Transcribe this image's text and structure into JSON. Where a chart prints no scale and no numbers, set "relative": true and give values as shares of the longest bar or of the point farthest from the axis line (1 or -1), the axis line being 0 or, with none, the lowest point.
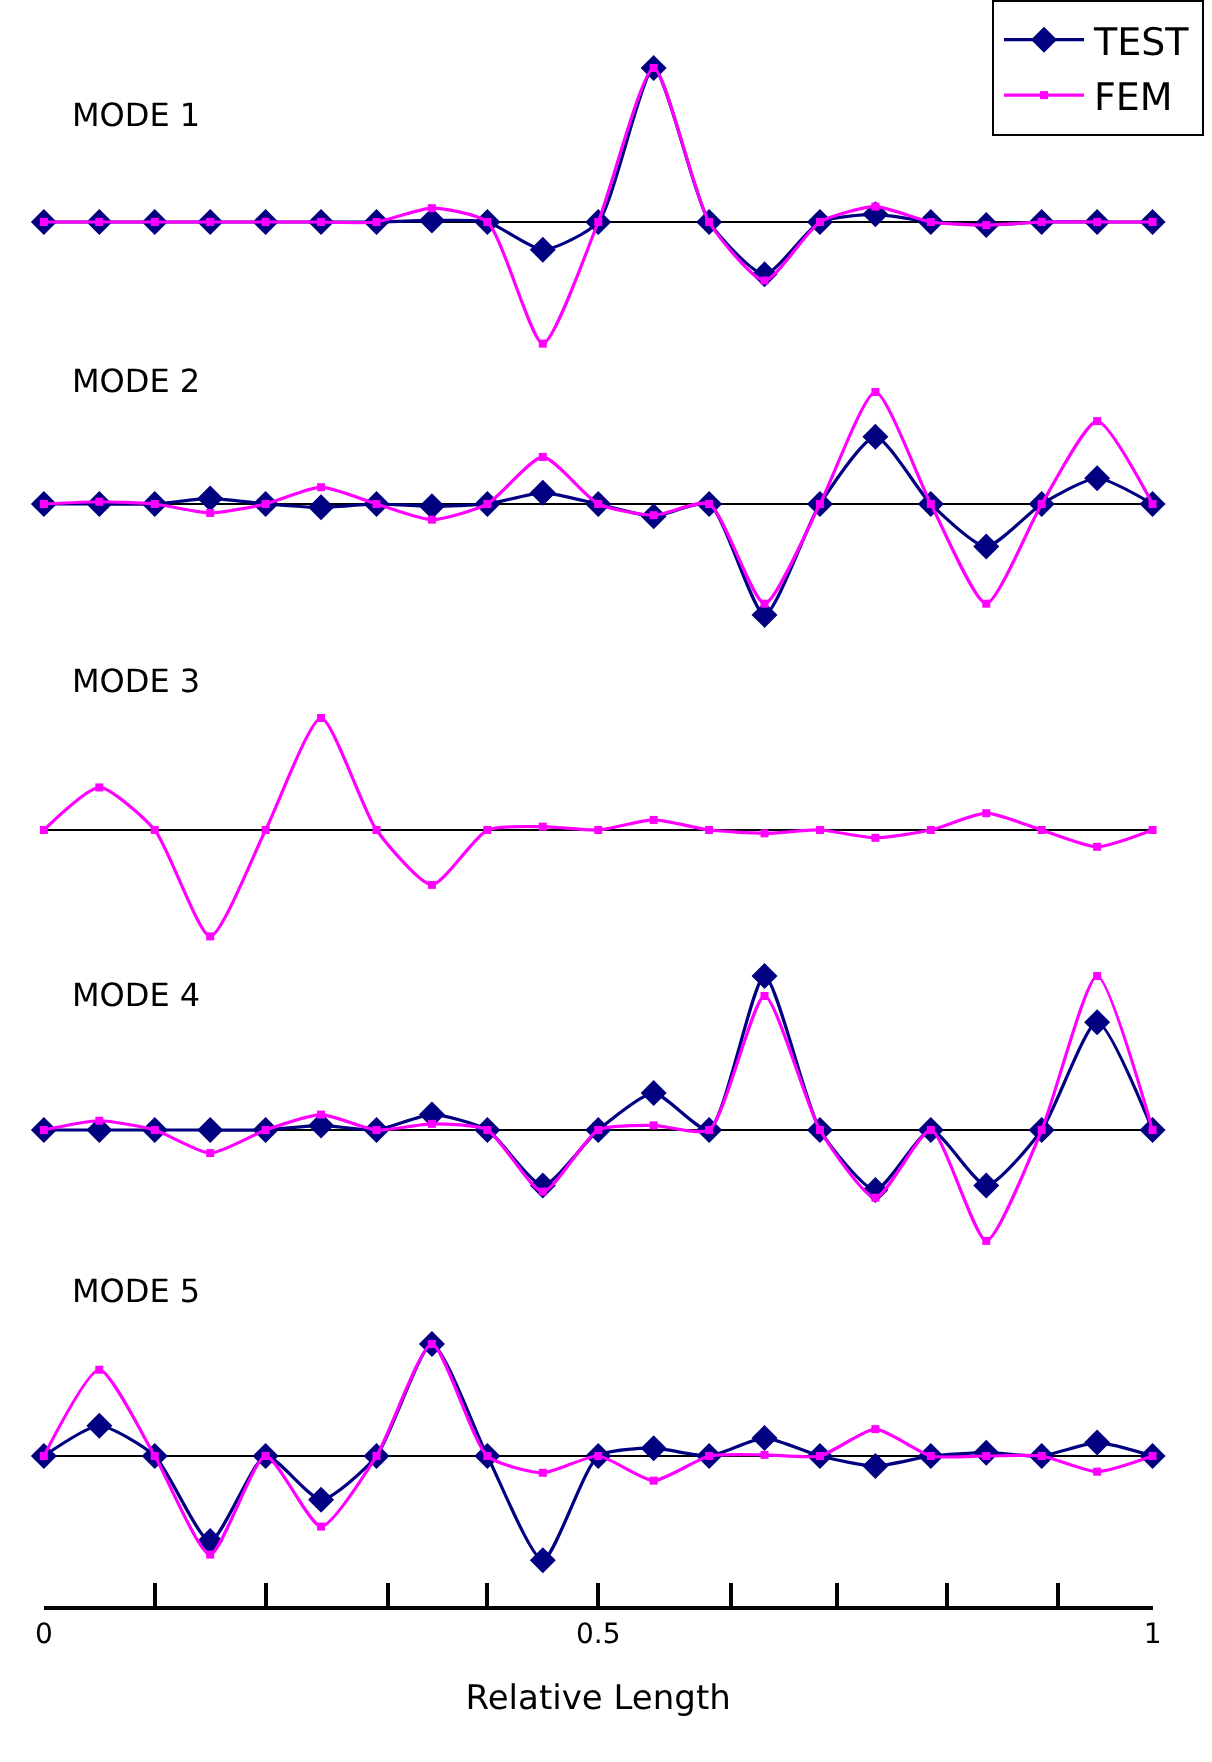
{
  "chart_data": [
    {
      "type": "line",
      "title": "MODE 1",
      "relative": true,
      "x": [
        0,
        0.05,
        0.1,
        0.15,
        0.2,
        0.25,
        0.3,
        0.35,
        0.4,
        0.45,
        0.5,
        0.55,
        0.6,
        0.65,
        0.7,
        0.75,
        0.8,
        0.85,
        0.9,
        0.95,
        1
      ],
      "xlim": [
        0,
        1
      ],
      "tick_labels": false,
      "legend": "top right",
      "series": [
        {
          "name": "TEST",
          "color": "#000080",
          "marker": "diamond",
          "values": [
            0,
            0,
            0,
            0,
            0,
            0,
            0,
            0.01,
            0,
            -0.18,
            0,
            1.0,
            0,
            -0.34,
            0,
            0.05,
            0,
            -0.02,
            0,
            0,
            0
          ]
        },
        {
          "name": "FEM",
          "color": "#ff00ff",
          "marker": "square",
          "values": [
            0,
            0,
            0,
            0,
            0,
            0,
            0,
            0.09,
            0,
            -0.79,
            0,
            1.0,
            0,
            -0.38,
            0,
            0.1,
            0,
            -0.02,
            0,
            0,
            0
          ]
        }
      ]
    },
    {
      "type": "line",
      "title": "MODE 2",
      "relative": true,
      "x": [
        0,
        0.05,
        0.1,
        0.15,
        0.2,
        0.25,
        0.3,
        0.35,
        0.4,
        0.45,
        0.5,
        0.55,
        0.6,
        0.65,
        0.7,
        0.75,
        0.8,
        0.85,
        0.9,
        0.95,
        1
      ],
      "xlim": [
        0,
        1
      ],
      "tick_labels": false,
      "series": [
        {
          "color": "#000080",
          "marker": "diamond",
          "values": [
            0,
            0,
            0,
            0.05,
            0,
            -0.03,
            0,
            -0.02,
            0,
            0.1,
            0,
            -0.11,
            0,
            -0.99,
            0,
            0.6,
            0,
            -0.38,
            0,
            0.23,
            0
          ]
        },
        {
          "color": "#ff00ff",
          "marker": "square",
          "values": [
            0,
            0.02,
            0,
            -0.08,
            0,
            0.15,
            0,
            -0.14,
            0,
            0.42,
            0,
            -0.1,
            0,
            -0.89,
            0,
            1.0,
            0,
            -0.89,
            0,
            0.74,
            0
          ]
        }
      ]
    },
    {
      "type": "line",
      "title": "MODE 3",
      "relative": true,
      "x": [
        0,
        0.05,
        0.1,
        0.15,
        0.2,
        0.25,
        0.3,
        0.35,
        0.4,
        0.45,
        0.5,
        0.55,
        0.6,
        0.65,
        0.7,
        0.75,
        0.8,
        0.85,
        0.9,
        0.95,
        1
      ],
      "xlim": [
        0,
        1
      ],
      "tick_labels": false,
      "series": [
        {
          "color": "#ff00ff",
          "marker": "square",
          "values": [
            0,
            0.38,
            0,
            -0.95,
            0,
            1.0,
            0,
            -0.49,
            0,
            0.03,
            0,
            0.09,
            0,
            -0.03,
            0,
            -0.07,
            0,
            0.15,
            0,
            -0.15,
            0
          ]
        }
      ]
    },
    {
      "type": "line",
      "title": "MODE 4",
      "relative": true,
      "x": [
        0,
        0.05,
        0.1,
        0.15,
        0.2,
        0.25,
        0.3,
        0.35,
        0.4,
        0.45,
        0.5,
        0.55,
        0.6,
        0.65,
        0.7,
        0.75,
        0.8,
        0.85,
        0.9,
        0.95,
        1
      ],
      "xlim": [
        0,
        1
      ],
      "tick_labels": false,
      "series": [
        {
          "color": "#000080",
          "marker": "diamond",
          "values": [
            0,
            0,
            0,
            0,
            0,
            0.03,
            0,
            0.1,
            0,
            -0.36,
            0,
            0.24,
            0,
            1.0,
            0,
            -0.39,
            0,
            -0.36,
            0,
            0.7,
            0
          ]
        },
        {
          "color": "#ff00ff",
          "marker": "square",
          "values": [
            0,
            0.06,
            0,
            -0.15,
            0,
            0.1,
            0,
            0.04,
            0,
            -0.4,
            0,
            0.03,
            0,
            0.87,
            0,
            -0.44,
            0,
            -0.72,
            0,
            1.0,
            0
          ]
        }
      ]
    },
    {
      "type": "line",
      "title": "MODE 5",
      "relative": true,
      "xlabel": "Relative Length",
      "x": [
        0,
        0.05,
        0.1,
        0.15,
        0.2,
        0.25,
        0.3,
        0.35,
        0.4,
        0.45,
        0.5,
        0.55,
        0.6,
        0.65,
        0.7,
        0.75,
        0.8,
        0.85,
        0.9,
        0.95,
        1
      ],
      "xlim": [
        0,
        1
      ],
      "tick_labels": "x",
      "xticks": [
        0,
        {
          "value": 0.1,
          "label": null
        },
        {
          "value": 0.2,
          "label": null
        },
        {
          "value": 0.31,
          "label": null
        },
        {
          "value": 0.4,
          "label": null
        },
        0.5,
        {
          "value": 0.62,
          "label": null
        },
        {
          "value": 0.715,
          "label": null
        },
        {
          "value": 0.815,
          "label": null
        },
        {
          "value": 0.915,
          "label": null
        },
        1
      ],
      "series": [
        {
          "color": "#000080",
          "marker": "diamond",
          "values": [
            0,
            0.27,
            0,
            -0.76,
            0,
            -0.39,
            0,
            1.0,
            0,
            -0.93,
            0,
            0.07,
            0,
            0.16,
            0,
            -0.09,
            0,
            0.03,
            0,
            0.12,
            0
          ]
        },
        {
          "color": "#ff00ff",
          "marker": "square",
          "values": [
            0,
            0.77,
            0,
            -0.88,
            0,
            -0.63,
            0,
            1.0,
            0,
            -0.15,
            0,
            -0.22,
            0,
            0.01,
            0,
            0.24,
            0,
            0,
            0,
            -0.14,
            0
          ]
        }
      ]
    }
  ]
}
